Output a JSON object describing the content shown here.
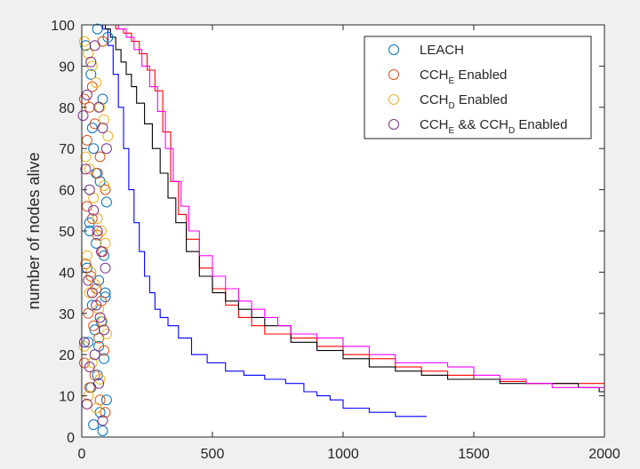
{
  "chart_data": {
    "type": "line",
    "title": "",
    "xlabel": "",
    "ylabel": "number of nodes alive",
    "xlim": [
      0,
      2000
    ],
    "ylim": [
      0,
      100
    ],
    "xticks": [
      0,
      500,
      1000,
      1500,
      2000
    ],
    "yticks": [
      0,
      10,
      20,
      30,
      40,
      50,
      60,
      70,
      80,
      90,
      100
    ],
    "grid": false,
    "legend_position": "top-right",
    "legend": [
      {
        "marker": "circle",
        "color": "#0072bd",
        "parts": [
          {
            "text": "LEACH",
            "sub": ""
          }
        ]
      },
      {
        "marker": "circle",
        "color": "#d95319",
        "parts": [
          {
            "text": "CCH",
            "sub": "E"
          },
          {
            "text": " Enabled",
            "sub": ""
          }
        ]
      },
      {
        "marker": "circle",
        "color": "#edb120",
        "parts": [
          {
            "text": "CCH",
            "sub": "D"
          },
          {
            "text": " Enabled",
            "sub": ""
          }
        ]
      },
      {
        "marker": "circle",
        "color": "#7e2f8e",
        "parts": [
          {
            "text": "CCH",
            "sub": "E"
          },
          {
            "text": " && CCH",
            "sub": "D"
          },
          {
            "text": " Enabled",
            "sub": ""
          }
        ]
      }
    ],
    "series": [
      {
        "color": "#0000ff",
        "x": [
          0,
          80,
          100,
          120,
          140,
          160,
          180,
          200,
          220,
          240,
          260,
          280,
          300,
          330,
          370,
          420,
          480,
          550,
          620,
          700,
          780,
          850,
          900,
          950,
          1000,
          1100,
          1200,
          1320
        ],
        "y": [
          100,
          99,
          95,
          88,
          80,
          70,
          60,
          52,
          45,
          39,
          35,
          31,
          29,
          27,
          24,
          20,
          18,
          16,
          15,
          14,
          13,
          11,
          10,
          9,
          7,
          6,
          5,
          5
        ]
      },
      {
        "color": "#ff0000",
        "x": [
          0,
          110,
          130,
          160,
          190,
          220,
          250,
          280,
          310,
          340,
          370,
          400,
          450,
          500,
          550,
          600,
          650,
          700,
          800,
          900,
          1000,
          1100,
          1200,
          1300,
          1400,
          1500,
          1600,
          1700,
          1800,
          1900,
          2000
        ],
        "y": [
          100,
          100,
          99,
          98,
          96,
          93,
          89,
          84,
          74,
          62,
          54,
          48,
          41,
          36,
          32,
          29,
          27,
          25,
          24,
          22,
          20,
          19,
          17,
          16,
          15,
          14,
          13.5,
          13,
          13,
          13,
          13
        ]
      },
      {
        "color": "#000000",
        "x": [
          0,
          90,
          110,
          130,
          150,
          170,
          190,
          210,
          240,
          270,
          300,
          330,
          360,
          400,
          450,
          500,
          550,
          600,
          650,
          700,
          800,
          900,
          1000,
          1100,
          1200,
          1300,
          1400,
          1500,
          1600,
          1700,
          1800,
          1900,
          1980,
          2000
        ],
        "y": [
          100,
          99,
          97,
          94,
          91,
          88,
          85,
          81,
          76,
          70,
          64,
          58,
          52,
          45,
          39,
          35,
          33,
          31,
          29,
          27,
          23,
          21,
          19,
          17,
          16,
          15,
          14,
          14,
          13,
          13,
          13,
          12,
          11,
          11
        ]
      },
      {
        "color": "#ff00ff",
        "x": [
          0,
          120,
          140,
          170,
          200,
          230,
          260,
          290,
          320,
          350,
          380,
          410,
          450,
          500,
          550,
          600,
          650,
          700,
          750,
          800,
          900,
          1000,
          1100,
          1200,
          1300,
          1400,
          1500,
          1600,
          1700,
          1800,
          1900,
          2000
        ],
        "y": [
          100,
          100,
          99,
          97,
          94,
          90,
          85,
          79,
          70,
          62,
          56,
          50,
          44,
          39,
          36,
          33,
          31,
          29,
          27,
          25,
          24,
          22,
          20,
          18,
          18,
          17,
          15,
          14,
          13,
          12,
          12,
          12
        ]
      }
    ],
    "scatter_series": [
      {
        "name": "LEACH",
        "color": "#0072bd",
        "x": [
          15,
          35,
          60,
          80,
          100,
          45,
          70,
          95,
          30,
          55,
          85,
          20,
          65,
          90,
          40,
          75,
          50,
          25,
          85,
          60,
          35,
          95,
          70,
          45,
          80,
          55,
          30,
          90,
          65,
          40
        ],
        "y": [
          95,
          88,
          99,
          82,
          97,
          70,
          62,
          57,
          52,
          47,
          44,
          41,
          38,
          35,
          32,
          28,
          26,
          23,
          19,
          15,
          12,
          9,
          6,
          3,
          1.5,
          64,
          50,
          34,
          22,
          75
        ]
      },
      {
        "name": "CCH_E Enabled",
        "color": "#d95319",
        "x": [
          10,
          30,
          50,
          70,
          90,
          20,
          40,
          60,
          80,
          15,
          35,
          55,
          75,
          25,
          45,
          65,
          85,
          10,
          50,
          30,
          70,
          90,
          20,
          60,
          40,
          80
        ],
        "y": [
          82,
          80,
          76,
          68,
          60,
          56,
          53,
          49,
          45,
          42,
          39,
          36,
          33,
          30,
          27,
          24,
          21,
          18,
          15,
          12,
          9,
          6,
          72,
          64,
          85,
          96
        ]
      },
      {
        "name": "CCH_D Enabled",
        "color": "#edb120",
        "x": [
          10,
          25,
          40,
          55,
          70,
          85,
          100,
          15,
          30,
          45,
          60,
          75,
          90,
          20,
          35,
          50,
          65,
          80,
          95,
          10,
          40,
          70,
          25,
          55,
          85,
          30
        ],
        "y": [
          96,
          93,
          90,
          86,
          80,
          77,
          73,
          68,
          65,
          58,
          53,
          50,
          47,
          44,
          40,
          37,
          31,
          28,
          25,
          22,
          18,
          14,
          10,
          7,
          61,
          35
        ]
      },
      {
        "name": "CCH_E && CCH_D Enabled",
        "color": "#7e2f8e",
        "x": [
          5,
          20,
          35,
          50,
          65,
          80,
          95,
          15,
          30,
          45,
          60,
          75,
          90,
          25,
          40,
          55,
          70,
          85,
          10,
          50,
          30,
          65,
          20,
          80
        ],
        "y": [
          78,
          83,
          91,
          95,
          80,
          75,
          70,
          65,
          60,
          55,
          50,
          45,
          41,
          38,
          35,
          32,
          29,
          26,
          23,
          20,
          17,
          13,
          8,
          4
        ]
      }
    ]
  }
}
